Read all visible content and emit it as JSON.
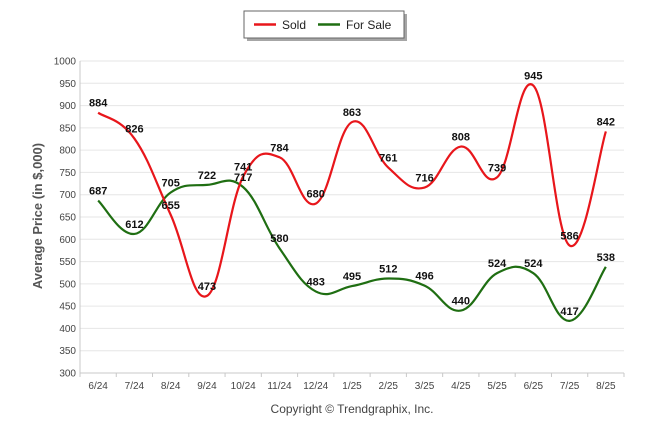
{
  "chart_data": {
    "type": "line",
    "title": "",
    "xlabel": "",
    "ylabel": "Average Price (in $,000)",
    "categories": [
      "6/24",
      "7/24",
      "8/24",
      "9/24",
      "10/24",
      "11/24",
      "12/24",
      "1/25",
      "2/25",
      "3/25",
      "4/25",
      "5/25",
      "6/25",
      "7/25",
      "8/25"
    ],
    "ylim": [
      300,
      1000
    ],
    "yticks": [
      300,
      350,
      400,
      450,
      500,
      550,
      600,
      650,
      700,
      750,
      800,
      850,
      900,
      950,
      1000
    ],
    "grid": true,
    "legend_position": "top-center",
    "series": [
      {
        "name": "Sold",
        "color": "#e8161b",
        "values": [
          884,
          826,
          655,
          473,
          741,
          784,
          680,
          863,
          761,
          716,
          808,
          739,
          945,
          586,
          842
        ]
      },
      {
        "name": "For Sale",
        "color": "#1f6e12",
        "values": [
          687,
          612,
          705,
          722,
          717,
          580,
          483,
          495,
          512,
          496,
          440,
          524,
          524,
          417,
          538
        ]
      }
    ],
    "footer": "Copyright © Trendgraphix, Inc."
  }
}
